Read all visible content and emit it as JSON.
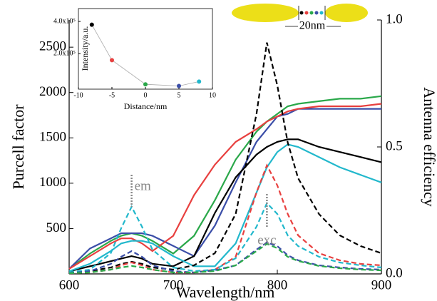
{
  "chart_data": [
    {
      "type": "line",
      "xlabel": "Wavelength/nm",
      "ylabel": "Purcell factor",
      "y2label": "Antenna efficiency",
      "xlim": [
        600,
        900
      ],
      "xticks": [
        600,
        700,
        800,
        900
      ],
      "ylim": [
        0,
        2800
      ],
      "yticks": [
        500,
        1000,
        1500,
        2000,
        2500
      ],
      "y2lim": [
        0,
        1.0
      ],
      "y2ticks": [
        {
          "value": 0,
          "label": "0.0"
        },
        0.5,
        {
          "value": 1.0,
          "label": "1.0"
        }
      ],
      "x": [
        600,
        620,
        640,
        650,
        660,
        670,
        680,
        700,
        720,
        740,
        760,
        780,
        790,
        800,
        810,
        820,
        840,
        860,
        880,
        900
      ],
      "series": [
        {
          "color": "#2aa84a",
          "axis": "y2",
          "dash": false,
          "values": [
            0.02,
            0.08,
            0.13,
            0.15,
            0.16,
            0.15,
            0.13,
            0.08,
            0.15,
            0.29,
            0.45,
            0.56,
            0.6,
            0.63,
            0.66,
            0.67,
            0.68,
            0.69,
            0.69,
            0.7
          ]
        },
        {
          "color": "#3b4ea8",
          "axis": "y2",
          "dash": false,
          "values": [
            0.02,
            0.1,
            0.14,
            0.16,
            0.16,
            0.16,
            0.15,
            0.11,
            0.07,
            0.19,
            0.36,
            0.52,
            0.57,
            0.62,
            0.63,
            0.65,
            0.65,
            0.65,
            0.65,
            0.65
          ]
        },
        {
          "color": "#e8403f",
          "axis": "y2",
          "dash": false,
          "values": [
            0.02,
            0.07,
            0.12,
            0.14,
            0.14,
            0.12,
            0.09,
            0.15,
            0.31,
            0.43,
            0.52,
            0.57,
            0.6,
            0.62,
            0.64,
            0.65,
            0.66,
            0.66,
            0.66,
            0.67
          ]
        },
        {
          "color": "#000000",
          "axis": "y2",
          "dash": false,
          "values": [
            0.01,
            0.03,
            0.05,
            0.06,
            0.07,
            0.06,
            0.04,
            0.03,
            0.07,
            0.24,
            0.38,
            0.47,
            0.5,
            0.52,
            0.53,
            0.53,
            0.5,
            0.48,
            0.46,
            0.44
          ]
        },
        {
          "color": "#22b8cc",
          "axis": "y2",
          "dash": false,
          "values": [
            0.01,
            0.04,
            0.09,
            0.12,
            0.13,
            0.13,
            0.12,
            0.07,
            0.03,
            0.03,
            0.12,
            0.32,
            0.42,
            0.48,
            0.51,
            0.5,
            0.46,
            0.42,
            0.39,
            0.36
          ]
        },
        {
          "color": "#000000",
          "dash": true,
          "values": [
            16,
            31,
            71,
            110,
            134,
            110,
            71,
            47,
            94,
            228,
            661,
            1764,
            2551,
            2079,
            1449,
            1055,
            661,
            425,
            307,
            228
          ]
        },
        {
          "color": "#e8403f",
          "dash": true,
          "values": [
            8,
            16,
            47,
            94,
            126,
            94,
            47,
            16,
            16,
            47,
            189,
            898,
            1197,
            976,
            661,
            425,
            228,
            150,
            110,
            94
          ]
        },
        {
          "color": "#22b8cc",
          "dash": true,
          "values": [
            16,
            47,
            228,
            504,
            740,
            520,
            268,
            71,
            31,
            47,
            173,
            520,
            780,
            661,
            425,
            307,
            189,
            126,
            94,
            71
          ]
        },
        {
          "color": "#3b4ea8",
          "dash": true,
          "values": [
            8,
            31,
            110,
            189,
            252,
            189,
            94,
            31,
            16,
            39,
            94,
            268,
            346,
            307,
            205,
            150,
            94,
            71,
            55,
            47
          ]
        },
        {
          "color": "#2aa84a",
          "dash": true,
          "values": [
            8,
            16,
            47,
            71,
            87,
            71,
            47,
            16,
            16,
            31,
            94,
            252,
            331,
            283,
            189,
            142,
            87,
            63,
            47,
            39
          ]
        }
      ],
      "annotations": [
        "em",
        "exc",
        "20nm"
      ]
    },
    {
      "type": "line",
      "markers": true,
      "xlabel": "Distance/nm",
      "ylabel": "Intensity/a.u.",
      "xlim": [
        -10,
        10
      ],
      "xticks": [
        -10,
        -5,
        0,
        5,
        10
      ],
      "ylim": [
        -20000,
        480000
      ],
      "yticks": [
        {
          "value": 200000,
          "label": "2.0x10⁵"
        },
        {
          "value": 400000,
          "label": "4.0x10⁵"
        }
      ],
      "x": [
        -8,
        -5,
        0,
        5,
        8
      ],
      "series": [
        {
          "color": "#aaaaaa",
          "point_colors": [
            "#000000",
            "#e8403f",
            "#2aa84a",
            "#3b4ea8",
            "#22b8cc"
          ],
          "values": [
            380000,
            160000,
            10000,
            0,
            27000
          ]
        }
      ]
    }
  ]
}
